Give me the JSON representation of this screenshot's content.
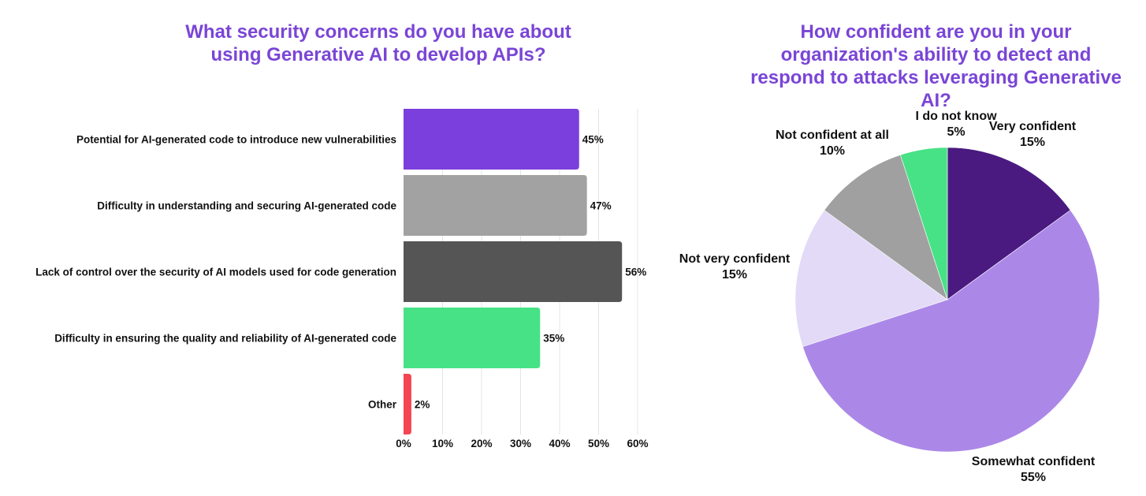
{
  "chart_data": [
    {
      "type": "bar",
      "orientation": "horizontal",
      "title": "What security concerns do you have about using Generative AI to develop APIs?",
      "categories": [
        "Potential for AI-generated code to introduce new vulnerabilities",
        "Difficulty in understanding and securing AI-generated code",
        "Lack of control over the security of AI models used for code generation",
        "Difficulty in ensuring the quality and reliability of AI-generated code",
        "Other"
      ],
      "values": [
        45,
        47,
        56,
        35,
        2
      ],
      "value_labels": [
        "45%",
        "47%",
        "56%",
        "35%",
        "2%"
      ],
      "colors": [
        "#7a3fdc",
        "#a2a2a2",
        "#555555",
        "#47e285",
        "#f54452"
      ],
      "xlabel": "",
      "ylabel": "",
      "xlim": [
        0,
        60
      ],
      "xticks": [
        0,
        10,
        20,
        30,
        40,
        50,
        60
      ],
      "xtick_labels": [
        "0%",
        "10%",
        "20%",
        "30%",
        "40%",
        "50%",
        "60%"
      ],
      "grid": true
    },
    {
      "type": "pie",
      "title": "How confident are you in your organization's ability to detect and respond to attacks leveraging Generative AI?",
      "slices": [
        {
          "label": "Very confident",
          "value": 15,
          "value_label": "15%",
          "color": "#4a1a80"
        },
        {
          "label": "Somewhat confident",
          "value": 55,
          "value_label": "55%",
          "color": "#ab88e8"
        },
        {
          "label": "Not very confident",
          "value": 15,
          "value_label": "15%",
          "color": "#e2daf6"
        },
        {
          "label": "Not confident at all",
          "value": 10,
          "value_label": "10%",
          "color": "#a0a0a0"
        },
        {
          "label": "I do not know",
          "value": 5,
          "value_label": "5%",
          "color": "#47e285"
        }
      ],
      "start": "12 o'clock",
      "direction": "clockwise"
    }
  ]
}
